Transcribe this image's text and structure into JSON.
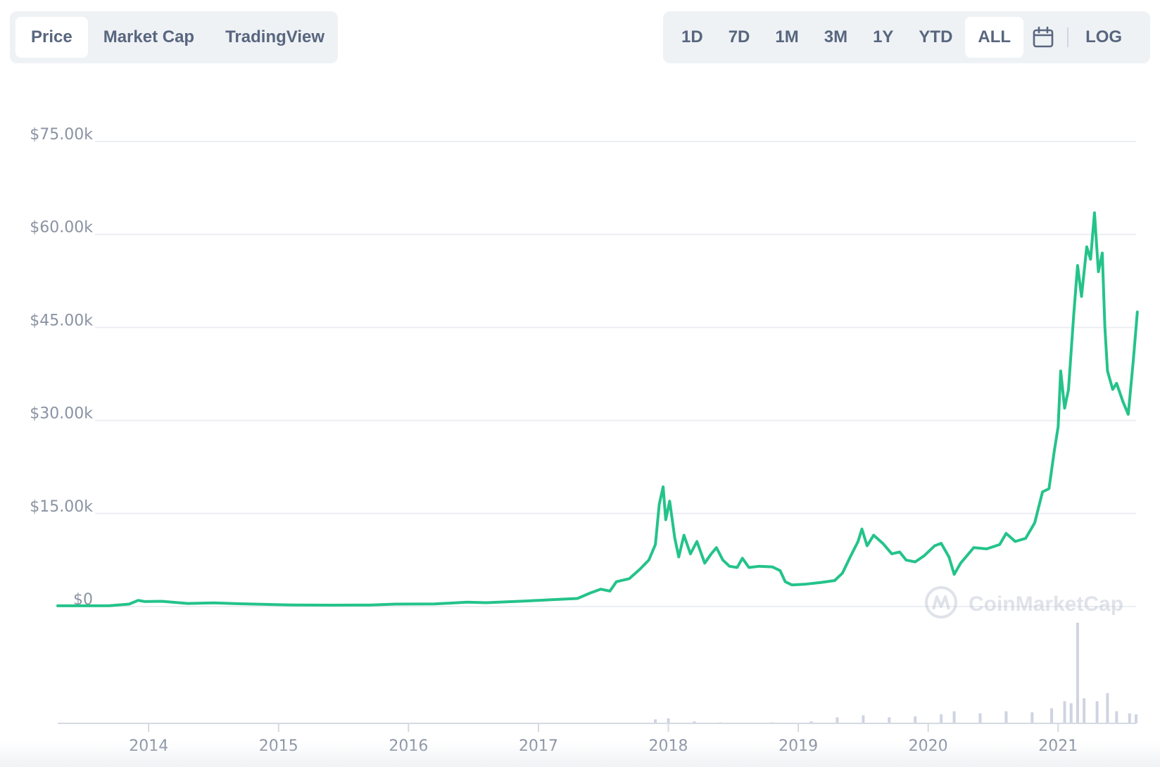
{
  "view_tabs": {
    "items": [
      {
        "label": "Price",
        "active": true
      },
      {
        "label": "Market Cap",
        "active": false
      },
      {
        "label": "TradingView",
        "active": false
      }
    ]
  },
  "range_tabs": {
    "items": [
      {
        "label": "1D",
        "active": false
      },
      {
        "label": "7D",
        "active": false
      },
      {
        "label": "1M",
        "active": false
      },
      {
        "label": "3M",
        "active": false
      },
      {
        "label": "1Y",
        "active": false
      },
      {
        "label": "YTD",
        "active": false
      },
      {
        "label": "ALL",
        "active": true
      }
    ],
    "calendar_icon": "calendar-icon",
    "log_label": "LOG"
  },
  "watermark": {
    "text": "CoinMarketCap",
    "icon": "coinmarketcap-logo-icon"
  },
  "colors": {
    "line": "#24c38a",
    "grid": "#eceef2",
    "volume": "#cfd4e2",
    "axis_text": "#8a93a3"
  },
  "chart_data": {
    "type": "line",
    "title": "",
    "xlabel": "",
    "ylabel": "",
    "x_range": [
      2013.3,
      2021.6
    ],
    "ylim": [
      0,
      75000
    ],
    "y_ticks": [
      0,
      15000,
      30000,
      45000,
      60000,
      75000
    ],
    "y_tick_labels": [
      "$0",
      "$15.00k",
      "$30.00k",
      "$45.00k",
      "$60.00k",
      "$75.00k"
    ],
    "x_ticks": [
      2014,
      2015,
      2016,
      2017,
      2018,
      2019,
      2020,
      2021
    ],
    "x_tick_labels": [
      "2014",
      "2015",
      "2016",
      "2017",
      "2018",
      "2019",
      "2020",
      "2021"
    ],
    "grid": true,
    "series": [
      {
        "values": [
          [
            2013.3,
            120
          ],
          [
            2013.7,
            140
          ],
          [
            2013.85,
            400
          ],
          [
            2013.92,
            1000
          ],
          [
            2013.97,
            800
          ],
          [
            2014.1,
            850
          ],
          [
            2014.3,
            500
          ],
          [
            2014.5,
            600
          ],
          [
            2014.7,
            450
          ],
          [
            2014.9,
            350
          ],
          [
            2015.1,
            250
          ],
          [
            2015.4,
            230
          ],
          [
            2015.7,
            240
          ],
          [
            2015.9,
            400
          ],
          [
            2016.2,
            420
          ],
          [
            2016.45,
            700
          ],
          [
            2016.6,
            620
          ],
          [
            2016.9,
            900
          ],
          [
            2017.0,
            1000
          ],
          [
            2017.1,
            1100
          ],
          [
            2017.3,
            1300
          ],
          [
            2017.4,
            2200
          ],
          [
            2017.48,
            2800
          ],
          [
            2017.55,
            2500
          ],
          [
            2017.6,
            4000
          ],
          [
            2017.7,
            4500
          ],
          [
            2017.78,
            6000
          ],
          [
            2017.85,
            7500
          ],
          [
            2017.9,
            10000
          ],
          [
            2017.93,
            16500
          ],
          [
            2017.96,
            19300
          ],
          [
            2017.98,
            14000
          ],
          [
            2018.01,
            17000
          ],
          [
            2018.05,
            11000
          ],
          [
            2018.08,
            8000
          ],
          [
            2018.12,
            11500
          ],
          [
            2018.17,
            8500
          ],
          [
            2018.22,
            10500
          ],
          [
            2018.28,
            7000
          ],
          [
            2018.33,
            8500
          ],
          [
            2018.37,
            9500
          ],
          [
            2018.42,
            7500
          ],
          [
            2018.47,
            6500
          ],
          [
            2018.53,
            6300
          ],
          [
            2018.57,
            7800
          ],
          [
            2018.62,
            6300
          ],
          [
            2018.7,
            6500
          ],
          [
            2018.8,
            6400
          ],
          [
            2018.86,
            5800
          ],
          [
            2018.9,
            4000
          ],
          [
            2018.95,
            3500
          ],
          [
            2019.05,
            3600
          ],
          [
            2019.18,
            3900
          ],
          [
            2019.28,
            4200
          ],
          [
            2019.34,
            5400
          ],
          [
            2019.4,
            8000
          ],
          [
            2019.46,
            10500
          ],
          [
            2019.49,
            12500
          ],
          [
            2019.53,
            9800
          ],
          [
            2019.58,
            11500
          ],
          [
            2019.65,
            10200
          ],
          [
            2019.72,
            8500
          ],
          [
            2019.78,
            8800
          ],
          [
            2019.83,
            7500
          ],
          [
            2019.9,
            7200
          ],
          [
            2019.97,
            8200
          ],
          [
            2020.05,
            9800
          ],
          [
            2020.1,
            10200
          ],
          [
            2020.16,
            8000
          ],
          [
            2020.2,
            5200
          ],
          [
            2020.25,
            7000
          ],
          [
            2020.35,
            9500
          ],
          [
            2020.45,
            9300
          ],
          [
            2020.55,
            10000
          ],
          [
            2020.6,
            11800
          ],
          [
            2020.67,
            10500
          ],
          [
            2020.75,
            11000
          ],
          [
            2020.82,
            13500
          ],
          [
            2020.88,
            18500
          ],
          [
            2020.93,
            19000
          ],
          [
            2020.97,
            25000
          ],
          [
            2021.0,
            29000
          ],
          [
            2021.02,
            38000
          ],
          [
            2021.05,
            32000
          ],
          [
            2021.08,
            35000
          ],
          [
            2021.12,
            47000
          ],
          [
            2021.15,
            55000
          ],
          [
            2021.18,
            50000
          ],
          [
            2021.22,
            58000
          ],
          [
            2021.25,
            56000
          ],
          [
            2021.28,
            63500
          ],
          [
            2021.31,
            54000
          ],
          [
            2021.34,
            57000
          ],
          [
            2021.36,
            45000
          ],
          [
            2021.38,
            38000
          ],
          [
            2021.42,
            35000
          ],
          [
            2021.45,
            36000
          ],
          [
            2021.5,
            33000
          ],
          [
            2021.54,
            31000
          ],
          [
            2021.58,
            40000
          ],
          [
            2021.61,
            47500
          ]
        ]
      }
    ],
    "volume": {
      "y_max": 100,
      "values": [
        [
          2013.5,
          0.5
        ],
        [
          2014.0,
          0.5
        ],
        [
          2015.0,
          0.5
        ],
        [
          2016.0,
          0.5
        ],
        [
          2017.0,
          0.5
        ],
        [
          2017.9,
          4
        ],
        [
          2018.0,
          5
        ],
        [
          2018.2,
          2
        ],
        [
          2018.4,
          1
        ],
        [
          2018.8,
          1
        ],
        [
          2019.1,
          2
        ],
        [
          2019.3,
          6
        ],
        [
          2019.5,
          8
        ],
        [
          2019.7,
          6
        ],
        [
          2019.9,
          7
        ],
        [
          2020.1,
          9
        ],
        [
          2020.2,
          12
        ],
        [
          2020.4,
          10
        ],
        [
          2020.6,
          12
        ],
        [
          2020.8,
          11
        ],
        [
          2020.95,
          15
        ],
        [
          2021.05,
          22
        ],
        [
          2021.1,
          20
        ],
        [
          2021.15,
          100
        ],
        [
          2021.2,
          25
        ],
        [
          2021.3,
          22
        ],
        [
          2021.38,
          30
        ],
        [
          2021.45,
          12
        ],
        [
          2021.55,
          10
        ],
        [
          2021.6,
          9
        ]
      ]
    }
  }
}
